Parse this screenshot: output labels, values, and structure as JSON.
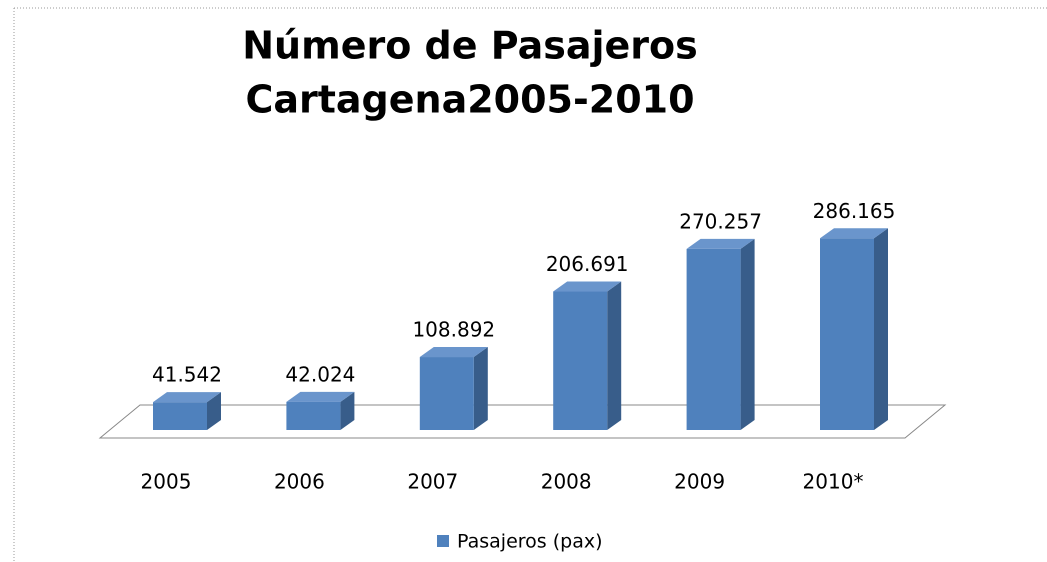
{
  "chart_data": {
    "type": "bar3d",
    "title": "Número de Pasajeros",
    "subtitle": "Cartagena2005-2010",
    "categories": [
      "2005",
      "2006",
      "2007",
      "2008",
      "2009",
      "2010*"
    ],
    "series": [
      {
        "name": "Pasajeros (pax)",
        "color": "#4f81bd",
        "values": [
          41542,
          42024,
          108892,
          206691,
          270257,
          286165
        ],
        "value_labels": [
          "41.542",
          "42.024",
          "108.892",
          "206.691",
          "270.257",
          "286.165"
        ]
      }
    ],
    "legend": "bottom"
  }
}
